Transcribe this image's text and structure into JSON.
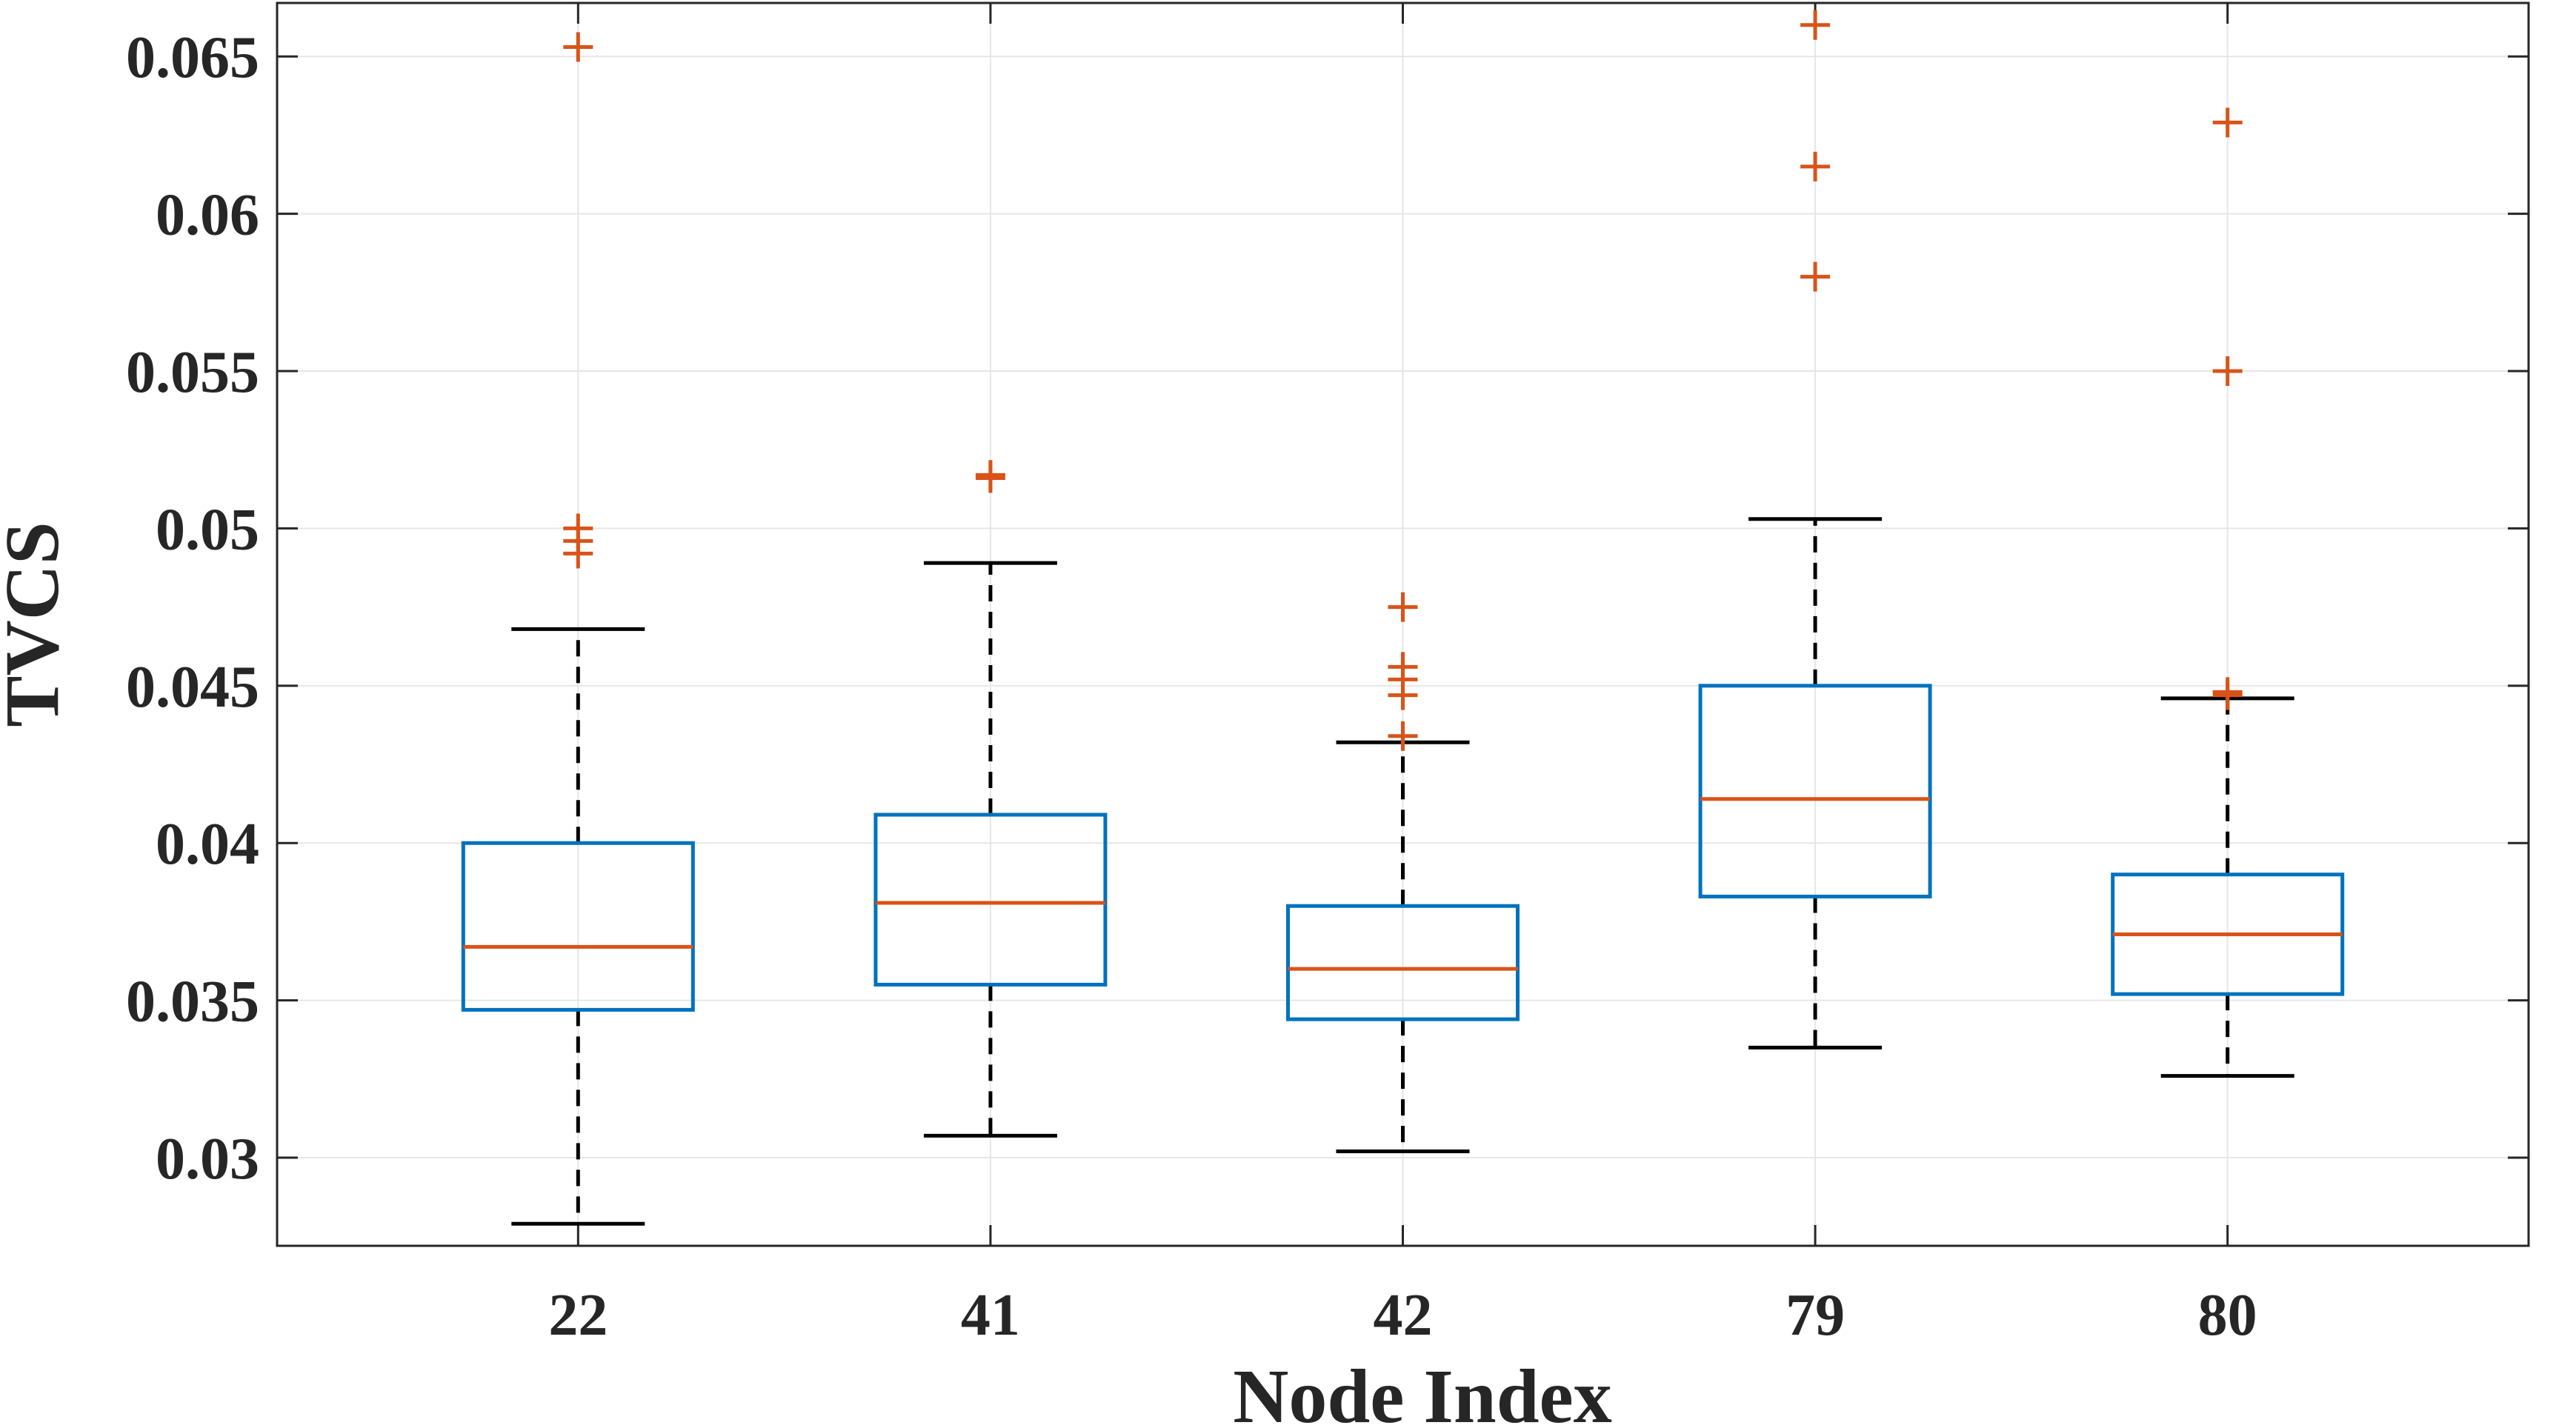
{
  "chart_data": {
    "type": "boxplot",
    "title": "",
    "xlabel": "Node Index",
    "ylabel": "TVCS",
    "categories": [
      "22",
      "41",
      "42",
      "79",
      "80"
    ],
    "ylim": [
      0.0272,
      0.0667
    ],
    "yticks": [
      0.03,
      0.035,
      0.04,
      0.045,
      0.05,
      0.055,
      0.06,
      0.065
    ],
    "ytick_labels": [
      "0.03",
      "0.035",
      "0.04",
      "0.045",
      "0.05",
      "0.055",
      "0.06",
      "0.065"
    ],
    "grid": true,
    "colors": {
      "box": "#0072BD",
      "median": "#D95319",
      "whisker": "#000000",
      "outlier": "#D95319",
      "grid": "#e6e6e6",
      "axis": "#262626"
    },
    "boxes": [
      {
        "category": "22",
        "whisker_low": 0.0279,
        "q1": 0.0347,
        "median": 0.0367,
        "q3": 0.04,
        "whisker_high": 0.0468,
        "outliers": [
          0.0653,
          0.05,
          0.0496,
          0.0492
        ]
      },
      {
        "category": "41",
        "whisker_low": 0.0307,
        "q1": 0.0355,
        "median": 0.0381,
        "q3": 0.0409,
        "whisker_high": 0.0489,
        "outliers": [
          0.0517,
          0.0516
        ]
      },
      {
        "category": "42",
        "whisker_low": 0.0302,
        "q1": 0.0344,
        "median": 0.036,
        "q3": 0.038,
        "whisker_high": 0.0432,
        "outliers": [
          0.0475,
          0.0456,
          0.0452,
          0.0447,
          0.0434
        ]
      },
      {
        "category": "79",
        "whisker_low": 0.0335,
        "q1": 0.0383,
        "median": 0.0414,
        "q3": 0.045,
        "whisker_high": 0.0503,
        "outliers": [
          0.066,
          0.0615,
          0.058
        ]
      },
      {
        "category": "80",
        "whisker_low": 0.0326,
        "q1": 0.0352,
        "median": 0.0371,
        "q3": 0.039,
        "whisker_high": 0.0446,
        "outliers": [
          0.0629,
          0.055,
          0.0448,
          0.0447
        ]
      }
    ]
  }
}
